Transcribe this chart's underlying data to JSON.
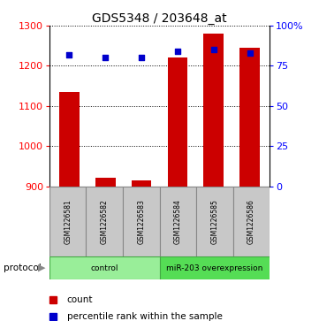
{
  "title": "GDS5348 / 203648_at",
  "samples": [
    "GSM1226581",
    "GSM1226582",
    "GSM1226583",
    "GSM1226584",
    "GSM1226585",
    "GSM1226586"
  ],
  "counts": [
    1135,
    922,
    915,
    1220,
    1280,
    1245
  ],
  "percentiles": [
    82,
    80,
    80,
    84,
    85,
    83
  ],
  "ylim_left": [
    900,
    1300
  ],
  "yticks_left": [
    900,
    1000,
    1100,
    1200,
    1300
  ],
  "ylim_right": [
    0,
    100
  ],
  "yticks_right": [
    0,
    25,
    50,
    75,
    100
  ],
  "ytick_labels_right": [
    "0",
    "25",
    "50",
    "75",
    "100%"
  ],
  "bar_color": "#cc0000",
  "dot_color": "#0000cc",
  "groups": [
    {
      "label": "control",
      "samples": [
        0,
        1,
        2
      ],
      "color": "#99ee99"
    },
    {
      "label": "miR-203 overexpression",
      "samples": [
        3,
        4,
        5
      ],
      "color": "#55dd55"
    }
  ],
  "protocol_label": "protocol",
  "legend_count_label": "count",
  "legend_percentile_label": "percentile rank within the sample",
  "bar_width": 0.55,
  "background_color": "#ffffff",
  "sample_box_color": "#c8c8c8",
  "title_fontsize": 10
}
